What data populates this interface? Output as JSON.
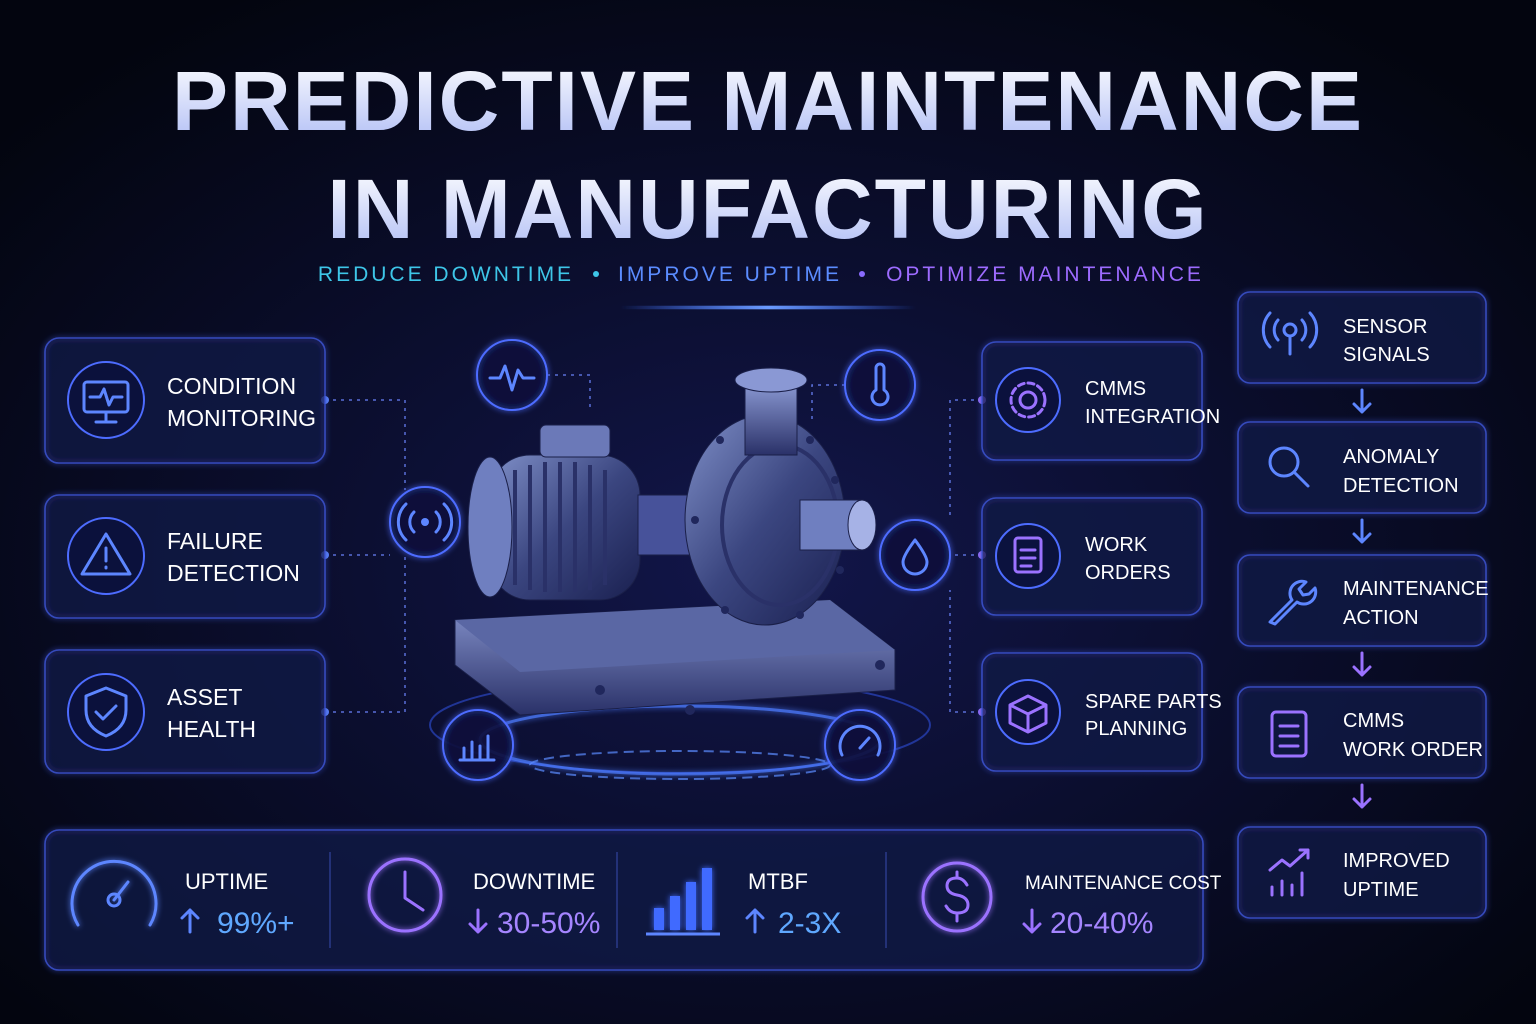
{
  "header": {
    "title_lines": [
      "PREDICTIVE MAINTENANCE",
      "IN MANUFACTURING"
    ],
    "taglines": [
      "REDUCE DOWNTIME",
      "IMPROVE UPTIME",
      "OPTIMIZE MAINTENANCE"
    ]
  },
  "left_cards": [
    {
      "lines": [
        "CONDITION",
        "MONITORING"
      ]
    },
    {
      "lines": [
        "FAILURE",
        "DETECTION"
      ]
    },
    {
      "lines": [
        "ASSET",
        "HEALTH"
      ]
    }
  ],
  "right_cards": [
    {
      "lines": [
        "CMMS",
        "INTEGRATION"
      ]
    },
    {
      "lines": [
        "WORK",
        "ORDERS"
      ]
    },
    {
      "lines": [
        "SPARE PARTS",
        "PLANNING"
      ]
    }
  ],
  "flow": [
    {
      "lines": [
        "SENSOR",
        "SIGNALS"
      ]
    },
    {
      "lines": [
        "ANOMALY",
        "DETECTION"
      ]
    },
    {
      "lines": [
        "MAINTENANCE",
        "ACTION"
      ]
    },
    {
      "lines": [
        "CMMS",
        "WORK ORDER"
      ]
    },
    {
      "lines": [
        "IMPROVED",
        "UPTIME"
      ]
    }
  ],
  "metrics": [
    {
      "label": "UPTIME",
      "value": "99%+"
    },
    {
      "label": "DOWNTIME",
      "value": "30-50%"
    },
    {
      "label": "MTBF",
      "value": "2-3X"
    },
    {
      "label": "MAINTENANCE COST",
      "value": "20-40%"
    }
  ]
}
